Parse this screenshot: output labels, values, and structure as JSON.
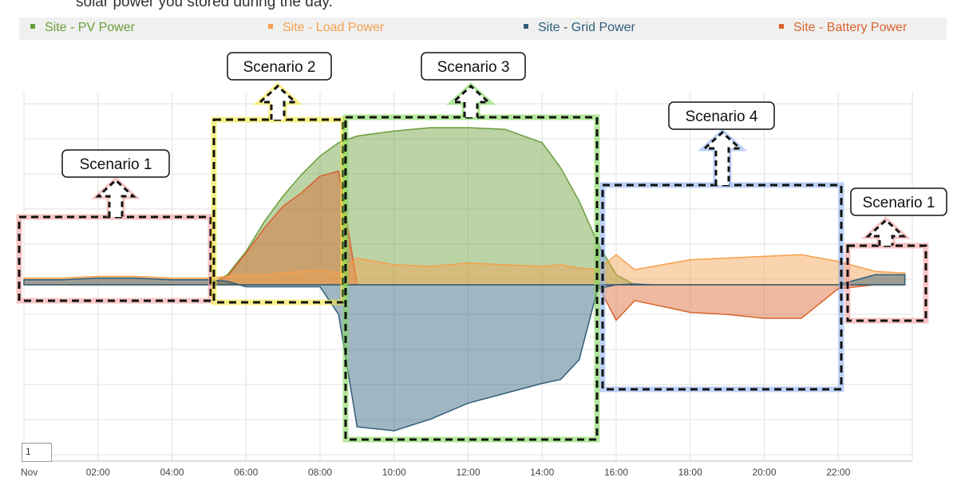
{
  "caption": "solar power you stored during the day.",
  "legend": [
    {
      "label": "Site - PV Power",
      "color": "#6a9e3a"
    },
    {
      "label": "Site - Load Power",
      "color": "#f5a04b"
    },
    {
      "label": "Site - Grid Power",
      "color": "#2e5e7a"
    },
    {
      "label": "Site - Battery Power",
      "color": "#d9642c"
    }
  ],
  "page_box_value": "1",
  "scenarios": [
    {
      "label": "Scenario 1",
      "color": "#f4a0a0"
    },
    {
      "label": "Scenario 2",
      "color": "#f5e63a"
    },
    {
      "label": "Scenario 3",
      "color": "#7ed957"
    },
    {
      "label": "Scenario 4",
      "color": "#8fb3f0"
    },
    {
      "label": "Scenario 1",
      "color": "#f4a0a0"
    }
  ],
  "chart_data": {
    "type": "area",
    "x_axis_start_label": "Nov",
    "x_ticks": [
      "02:00",
      "04:00",
      "06:00",
      "08:00",
      "10:00",
      "12:00",
      "14:00",
      "16:00",
      "18:00",
      "20:00",
      "22:00"
    ],
    "xlim_hours": [
      0,
      24
    ],
    "ylim": [
      -8,
      10
    ],
    "grid": true,
    "x": [
      0,
      1,
      2,
      3,
      4,
      5,
      5.5,
      6,
      6.5,
      7,
      7.5,
      8,
      8.5,
      9,
      10,
      11,
      12,
      13,
      14,
      14.5,
      15,
      15.5,
      16,
      16.5,
      17,
      18,
      19,
      20,
      21,
      22,
      23,
      23.8
    ],
    "series": [
      {
        "name": "Site - PV Power",
        "values": [
          0,
          0,
          0,
          0,
          0,
          0,
          0.6,
          2.0,
          3.8,
          5.3,
          6.6,
          7.7,
          8.5,
          8.9,
          9.2,
          9.4,
          9.4,
          9.3,
          8.5,
          7.0,
          5.0,
          2.5,
          0.6,
          0,
          0,
          0,
          0,
          0,
          0,
          0,
          0,
          0
        ]
      },
      {
        "name": "Site - Load Power",
        "values": [
          0.4,
          0.4,
          0.5,
          0.5,
          0.4,
          0.4,
          0.5,
          0.6,
          0.6,
          0.7,
          0.8,
          0.9,
          0.7,
          1.6,
          1.2,
          1.1,
          1.3,
          1.2,
          1.1,
          1.2,
          1.0,
          0.9,
          1.8,
          0.9,
          1.1,
          1.5,
          1.6,
          1.7,
          1.8,
          1.4,
          0.8,
          0.7
        ]
      },
      {
        "name": "Site - Grid Power",
        "values": [
          0.3,
          0.3,
          0.4,
          0.4,
          0.3,
          0.3,
          0.2,
          -0.1,
          -0.1,
          -0.1,
          -0.1,
          -0.1,
          -1.5,
          -7.2,
          -7.4,
          -6.8,
          -6.0,
          -5.5,
          -5.0,
          -4.8,
          -3.8,
          -0.2,
          0.0,
          0.05,
          0.0,
          0.0,
          0.0,
          0.0,
          0.0,
          0.0,
          0.6,
          0.6
        ]
      },
      {
        "name": "Site - Battery Power",
        "values": [
          0,
          0,
          0,
          0,
          0,
          0,
          0.5,
          1.9,
          3.4,
          4.7,
          5.5,
          6.5,
          6.8,
          0,
          0,
          0,
          0,
          0,
          0,
          0,
          0,
          0,
          -1.8,
          -0.8,
          -1.0,
          -1.4,
          -1.5,
          -1.7,
          -1.7,
          -0.2,
          0,
          0
        ]
      }
    ]
  }
}
